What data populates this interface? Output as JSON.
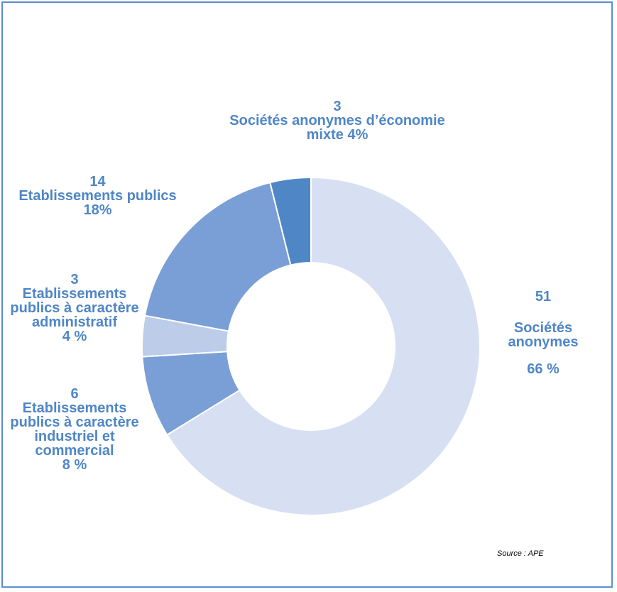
{
  "chart_data": {
    "type": "pie",
    "variant": "donut",
    "start": "12 o'clock, clockwise",
    "slices": [
      {
        "count": "51",
        "name": "Sociétés anonymes",
        "percent_label": "66 %",
        "value": 51,
        "color": "#d6e0f2"
      },
      {
        "count": "6",
        "name": "Etablissements publics à caractère industriel et commercial",
        "percent_label": "8 %",
        "value": 6,
        "color": "#7a9fd6"
      },
      {
        "count": "3",
        "name": "Etablissements publics à caractère administratif",
        "percent_label": "4 %",
        "value": 3,
        "color": "#bccce9"
      },
      {
        "count": "14",
        "name": "Etablissements publics",
        "percent_label": "18%",
        "value": 14,
        "color": "#7a9fd6"
      },
      {
        "count": "3",
        "name": "Sociétés anonymes d’économie mixte",
        "percent_label": "4%",
        "value": 3,
        "color": "#4f86c6"
      }
    ]
  },
  "labels": {
    "sa": {
      "count": "51",
      "line1": "Sociétés",
      "line2": "anonymes",
      "pct": "66 %"
    },
    "epic": {
      "count": "6",
      "line1": "Etablissements",
      "line2": "publics à caractère",
      "line3": "industriel et",
      "line4": "commercial",
      "pct": "8 %"
    },
    "epa": {
      "count": "3",
      "line1": "Etablissements",
      "line2": "publics à caractère",
      "line3": "administratif",
      "pct": "4 %"
    },
    "ep": {
      "count": "14",
      "line1": "Etablissements publics",
      "pct": "18%"
    },
    "saem": {
      "count": "3",
      "line1": "Sociétés anonymes d’économie",
      "line2": "mixte 4%"
    }
  },
  "source": "Source : APE"
}
